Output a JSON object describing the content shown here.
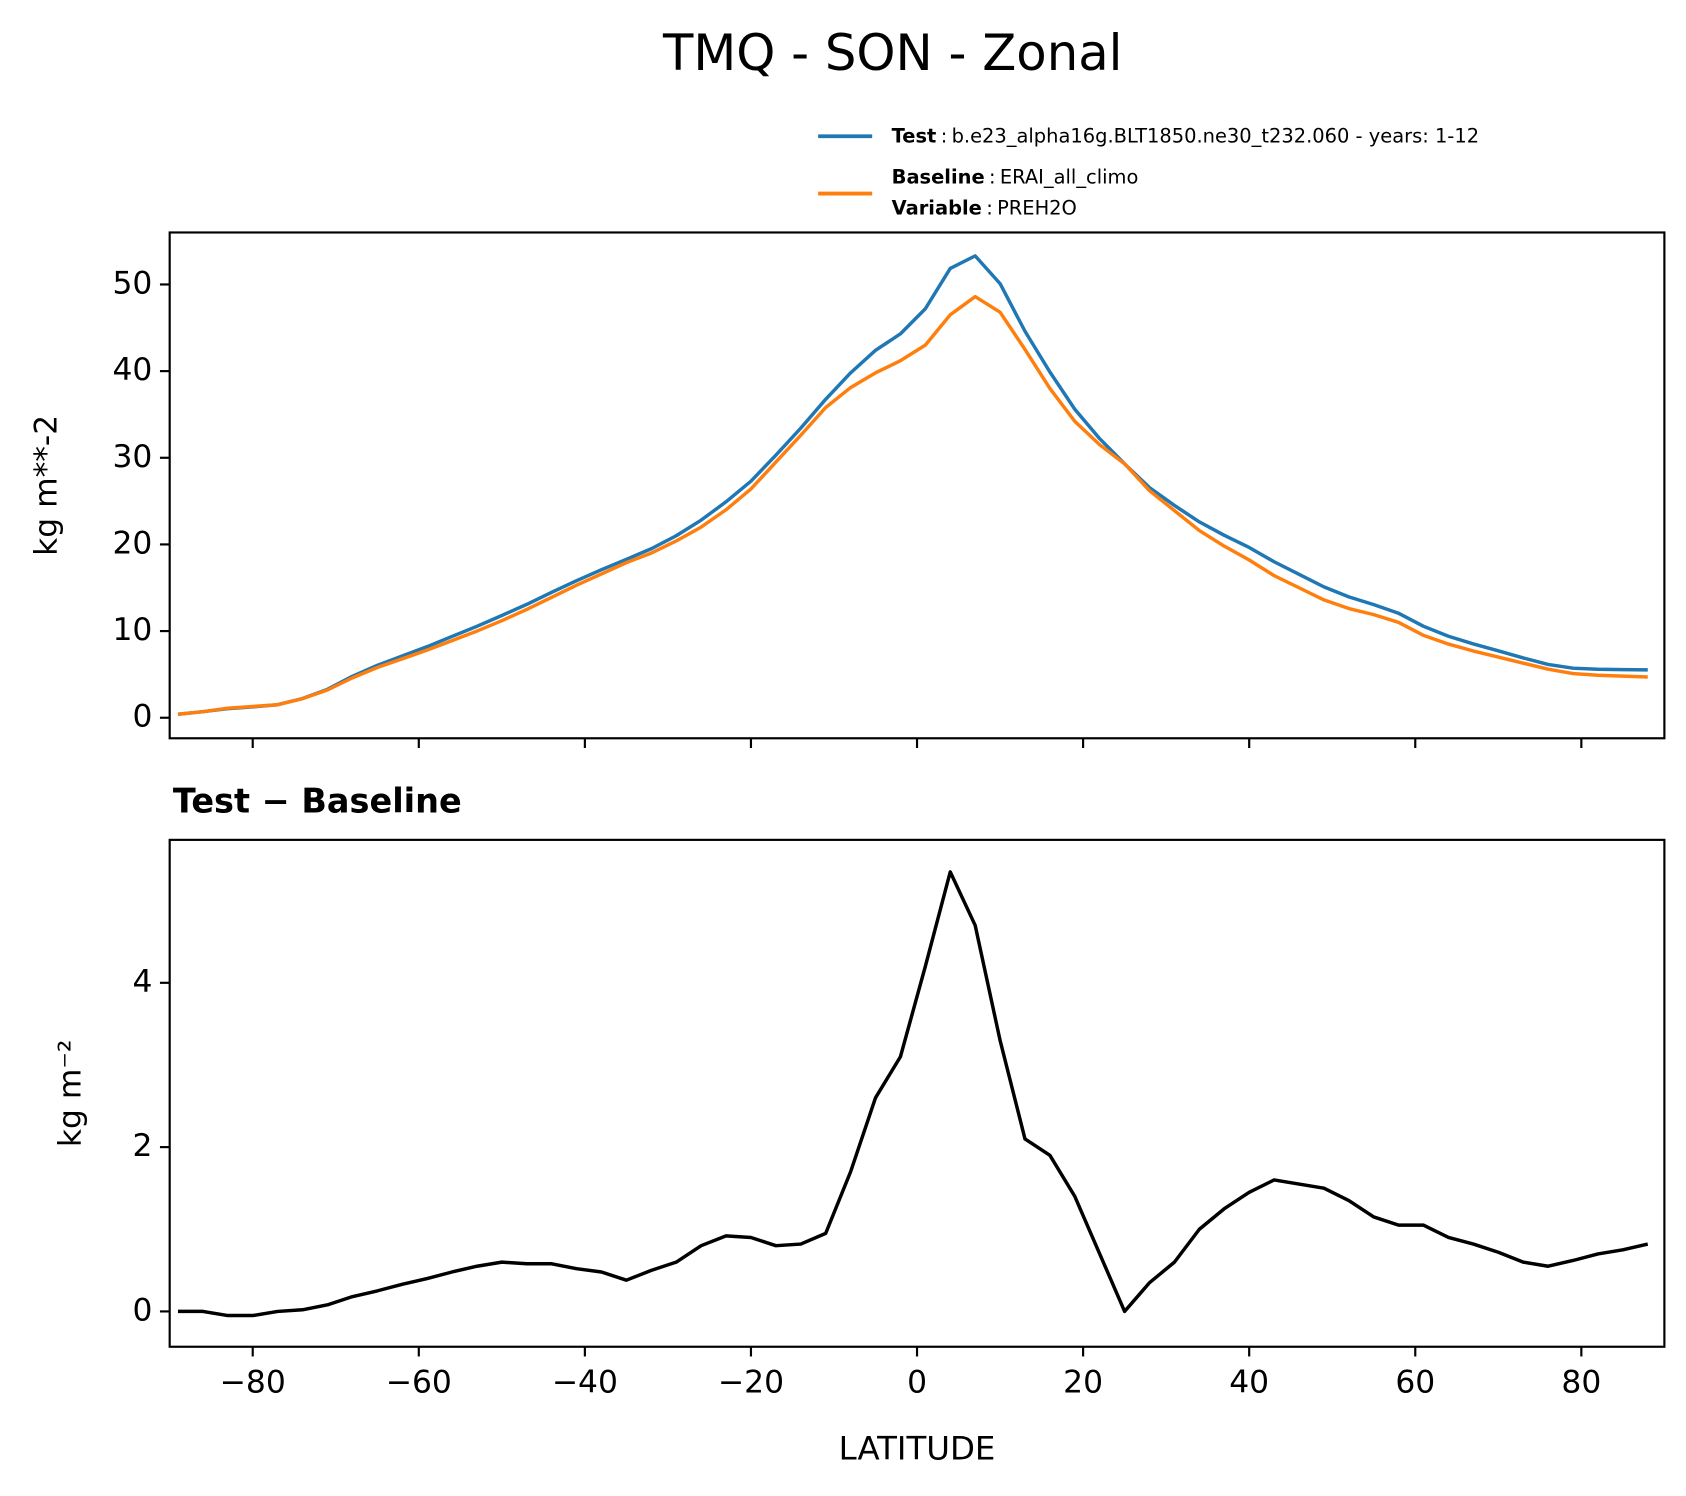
{
  "title": "TMQ - SON - Zonal",
  "chart_data": [
    {
      "type": "line",
      "ylabel": "kg m**-2",
      "legend_separator": ":",
      "legend_extra": {
        "name": "Variable",
        "detail": "PREH2O"
      },
      "x": [
        -89,
        -86,
        -83,
        -80,
        -77,
        -74,
        -71,
        -68,
        -65,
        -62,
        -59,
        -56,
        -53,
        -50,
        -47,
        -44,
        -41,
        -38,
        -35,
        -32,
        -29,
        -26,
        -23,
        -20,
        -17,
        -14,
        -11,
        -8,
        -5,
        -2,
        1,
        4,
        7,
        10,
        13,
        16,
        19,
        22,
        25,
        28,
        31,
        34,
        37,
        40,
        43,
        46,
        49,
        52,
        55,
        58,
        61,
        64,
        67,
        70,
        73,
        76,
        79,
        82,
        85,
        88
      ],
      "series": [
        {
          "name": "Test",
          "detail": "b.e23_alpha16g.BLT1850.ne30_t232.060 - years: 1-12",
          "color": "#1f77b4",
          "values": [
            0.4,
            0.7,
            1.05,
            1.25,
            1.5,
            2.22,
            3.28,
            4.78,
            6.05,
            7.13,
            8.2,
            9.38,
            10.55,
            11.8,
            13.08,
            14.48,
            15.82,
            17.08,
            18.28,
            19.5,
            21.0,
            22.8,
            24.92,
            27.3,
            30.3,
            33.42,
            36.75,
            39.8,
            42.4,
            44.3,
            47.2,
            51.85,
            53.3,
            50.1,
            44.6,
            39.9,
            35.6,
            32.2,
            29.3,
            26.55,
            24.5,
            22.6,
            21.05,
            19.65,
            18.0,
            16.55,
            15.1,
            13.95,
            13.05,
            12.05,
            10.55,
            9.4,
            8.52,
            7.72,
            6.9,
            6.15,
            5.72,
            5.6,
            5.55,
            5.52
          ]
        },
        {
          "name": "Baseline",
          "detail": "ERAI_all_climo",
          "color": "#ff7f0e",
          "values": [
            0.4,
            0.7,
            1.1,
            1.3,
            1.5,
            2.2,
            3.2,
            4.6,
            5.8,
            6.8,
            7.8,
            8.9,
            10.0,
            11.2,
            12.5,
            13.9,
            15.3,
            16.6,
            17.9,
            19.0,
            20.4,
            22.0,
            24.0,
            26.4,
            29.5,
            32.6,
            35.8,
            38.1,
            39.8,
            41.2,
            43.0,
            46.5,
            48.6,
            46.8,
            42.5,
            38.0,
            34.2,
            31.5,
            29.3,
            26.2,
            23.9,
            21.6,
            19.8,
            18.2,
            16.4,
            15.0,
            13.6,
            12.6,
            11.9,
            11.0,
            9.5,
            8.5,
            7.7,
            7.0,
            6.3,
            5.6,
            5.1,
            4.9,
            4.8,
            4.7
          ]
        }
      ],
      "xlim": [
        -90,
        90
      ],
      "xticks": [
        -80,
        -60,
        -40,
        -20,
        0,
        20,
        40,
        60,
        80
      ],
      "show_xtick_labels": false,
      "ylim": [
        -2.37,
        56.0
      ],
      "yticks": [
        0,
        10,
        20,
        30,
        40,
        50
      ]
    },
    {
      "type": "line",
      "subtitle": "Test − Baseline",
      "ylabel": "kg m⁻²",
      "xlabel": "LATITUDE",
      "x": [
        -89,
        -86,
        -83,
        -80,
        -77,
        -74,
        -71,
        -68,
        -65,
        -62,
        -59,
        -56,
        -53,
        -50,
        -47,
        -44,
        -41,
        -38,
        -35,
        -32,
        -29,
        -26,
        -23,
        -20,
        -17,
        -14,
        -11,
        -8,
        -5,
        -2,
        1,
        4,
        7,
        10,
        13,
        16,
        19,
        22,
        25,
        28,
        31,
        34,
        37,
        40,
        43,
        46,
        49,
        52,
        55,
        58,
        61,
        64,
        67,
        70,
        73,
        76,
        79,
        82,
        85,
        88
      ],
      "series": [
        {
          "color": "#000000",
          "values": [
            0.0,
            0.0,
            -0.05,
            -0.05,
            0.0,
            0.02,
            0.08,
            0.18,
            0.25,
            0.33,
            0.4,
            0.48,
            0.55,
            0.6,
            0.58,
            0.58,
            0.52,
            0.48,
            0.38,
            0.5,
            0.6,
            0.8,
            0.92,
            0.9,
            0.8,
            0.82,
            0.95,
            1.7,
            2.6,
            3.1,
            4.2,
            5.35,
            4.7,
            3.3,
            2.1,
            1.9,
            1.4,
            0.7,
            0.0,
            0.35,
            0.6,
            1.0,
            1.25,
            1.45,
            1.6,
            1.55,
            1.5,
            1.35,
            1.15,
            1.05,
            1.05,
            0.9,
            0.82,
            0.72,
            0.6,
            0.55,
            0.62,
            0.7,
            0.75,
            0.82
          ]
        }
      ],
      "xlim": [
        -90,
        90
      ],
      "xticks": [
        {
          "value": -80,
          "label": "−80"
        },
        {
          "value": -60,
          "label": "−60"
        },
        {
          "value": -40,
          "label": "−40"
        },
        {
          "value": -20,
          "label": "−20"
        },
        0,
        20,
        40,
        60,
        80
      ],
      "show_xtick_labels": true,
      "ylim": [
        -0.43,
        5.74
      ],
      "yticks": [
        0,
        2,
        4
      ]
    }
  ]
}
